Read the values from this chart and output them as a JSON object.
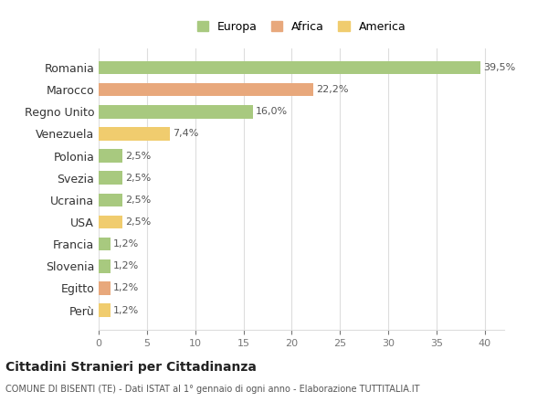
{
  "categories": [
    "Romania",
    "Marocco",
    "Regno Unito",
    "Venezuela",
    "Polonia",
    "Svezia",
    "Ucraina",
    "USA",
    "Francia",
    "Slovenia",
    "Egitto",
    "Perù"
  ],
  "values": [
    39.5,
    22.2,
    16.0,
    7.4,
    2.5,
    2.5,
    2.5,
    2.5,
    1.2,
    1.2,
    1.2,
    1.2
  ],
  "labels": [
    "39,5%",
    "22,2%",
    "16,0%",
    "7,4%",
    "2,5%",
    "2,5%",
    "2,5%",
    "2,5%",
    "1,2%",
    "1,2%",
    "1,2%",
    "1,2%"
  ],
  "continents": [
    "Europa",
    "Africa",
    "Europa",
    "America",
    "Europa",
    "Europa",
    "Europa",
    "America",
    "Europa",
    "Europa",
    "Africa",
    "America"
  ],
  "colors": {
    "Europa": "#a8c97f",
    "Africa": "#e8a87c",
    "America": "#f0cc6e"
  },
  "legend_order": [
    "Europa",
    "Africa",
    "America"
  ],
  "title1": "Cittadini Stranieri per Cittadinanza",
  "title2": "COMUNE DI BISENTI (TE) - Dati ISTAT al 1° gennaio di ogni anno - Elaborazione TUTTITALIA.IT",
  "xlim": [
    0,
    42
  ],
  "xticks": [
    0,
    5,
    10,
    15,
    20,
    25,
    30,
    35,
    40
  ],
  "background_color": "#ffffff",
  "grid_color": "#dddddd",
  "bar_height": 0.6
}
